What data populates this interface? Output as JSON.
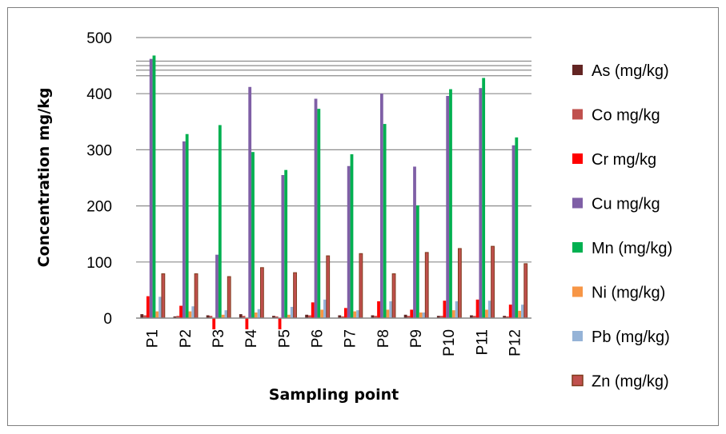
{
  "chart_data": {
    "type": "bar",
    "title": "",
    "xlabel": "Sampling point",
    "ylabel": "Concentration mg/kg",
    "ylim": [
      0,
      500
    ],
    "yticks": [
      "0",
      "100",
      "200",
      "300",
      "400",
      "500"
    ],
    "categories": [
      "P1",
      "P2",
      "P3",
      "P4",
      "P5",
      "P6",
      "P7",
      "P8",
      "P9",
      "P10",
      "P11",
      "P12"
    ],
    "grid": true,
    "legend_position": "right",
    "series": [
      {
        "name": "As (mg/kg)",
        "color": "#632523",
        "values": [
          7,
          3,
          5,
          7,
          4,
          6,
          5,
          5,
          6,
          4,
          5,
          4
        ]
      },
      {
        "name": "Co mg/kg",
        "color": "#c0504d",
        "values": [
          5,
          4,
          4,
          4,
          3,
          5,
          3,
          4,
          4,
          4,
          4,
          3
        ]
      },
      {
        "name": "Cr mg/kg",
        "color": "#ff0000",
        "values": [
          39,
          22,
          -20,
          -20,
          -20,
          28,
          18,
          30,
          15,
          31,
          33,
          24
        ]
      },
      {
        "name": "Cu mg/kg",
        "color": "#7f5fa6",
        "values": [
          462,
          315,
          113,
          412,
          255,
          391,
          271,
          400,
          270,
          396,
          410,
          308
        ]
      },
      {
        "name": "Mn (mg/kg)",
        "color": "#00b050",
        "values": [
          468,
          328,
          344,
          296,
          264,
          373,
          292,
          346,
          201,
          408,
          428,
          322
        ]
      },
      {
        "name": "Ni (mg/kg)",
        "color": "#f79646",
        "values": [
          12,
          12,
          6,
          10,
          6,
          15,
          12,
          15,
          10,
          14,
          15,
          13
        ]
      },
      {
        "name": "Pb (mg/kg)",
        "color": "#95b3d7",
        "values": [
          38,
          21,
          14,
          16,
          20,
          33,
          14,
          30,
          10,
          30,
          31,
          24
        ]
      },
      {
        "name": "Zn (mg/kg)",
        "color": "#c0504d",
        "values": [
          79,
          79,
          74,
          90,
          81,
          111,
          115,
          79,
          117,
          124,
          128,
          97
        ]
      }
    ]
  }
}
